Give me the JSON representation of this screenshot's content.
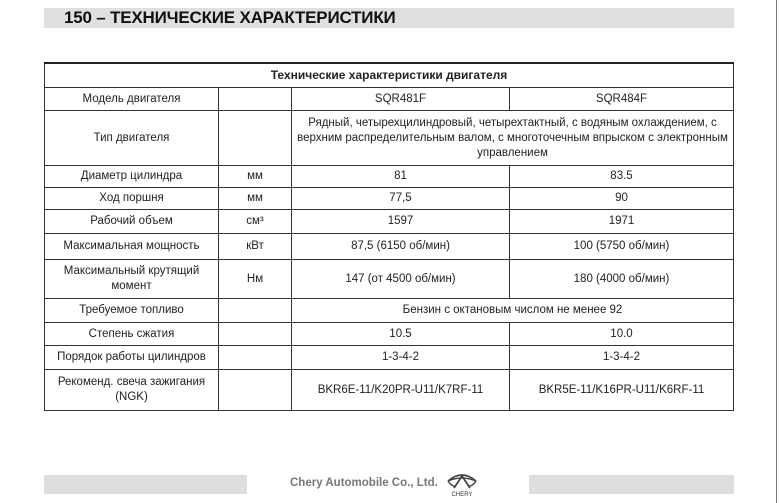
{
  "header": {
    "title": "150 – ТЕХНИЧЕСКИЕ ХАРАКТЕРИСТИКИ"
  },
  "table": {
    "title": "Технические характеристики двигателя",
    "rows": [
      {
        "param": "Модель двигателя",
        "unit": "",
        "a": "SQR481F",
        "b": "SQR484F"
      },
      {
        "param": "Тип двигателя",
        "unit": "",
        "merged": "Рядный, четырехцилиндровый, четырехтактный, с водяным охлаждением, с верхним распределительным валом, с многоточечным впрыском с электронным управлением"
      },
      {
        "param": "Диаметр цилиндра",
        "unit": "мм",
        "a": "81",
        "b": "83.5"
      },
      {
        "param": "Ход поршня",
        "unit": "мм",
        "a": "77,5",
        "b": "90"
      },
      {
        "param": "Рабочий объем",
        "unit": "см³",
        "a": "1597",
        "b": "1971"
      },
      {
        "param": "Максимальная мощность",
        "unit": "кВт",
        "a": "87,5 (6150 об/мин)",
        "b": "100 (5750 об/мин)"
      },
      {
        "param": "Максимальный крутящий момент",
        "unit": "Нм",
        "a": "147 (от 4500 об/мин)",
        "b": "180 (4000 об/мин)"
      },
      {
        "param": "Требуемое топливо",
        "unit": "",
        "merged": "Бензин с октановым числом не менее 92"
      },
      {
        "param": "Степень сжатия",
        "unit": "",
        "a": "10.5",
        "b": "10.0"
      },
      {
        "param": "Порядок работы цилиндров",
        "unit": "",
        "a": "1-3-4-2",
        "b": "1-3-4-2"
      },
      {
        "param": "Рекоменд. свеча зажигания (NGK)",
        "unit": "",
        "a": "BKR6E-11/K20PR-U11/K7RF-11",
        "b": "BKR5E-11/K16PR-U11/K6RF-11"
      }
    ]
  },
  "footer": {
    "company": "Chery Automobile Co., Ltd.",
    "logo_text": "CHERY"
  }
}
